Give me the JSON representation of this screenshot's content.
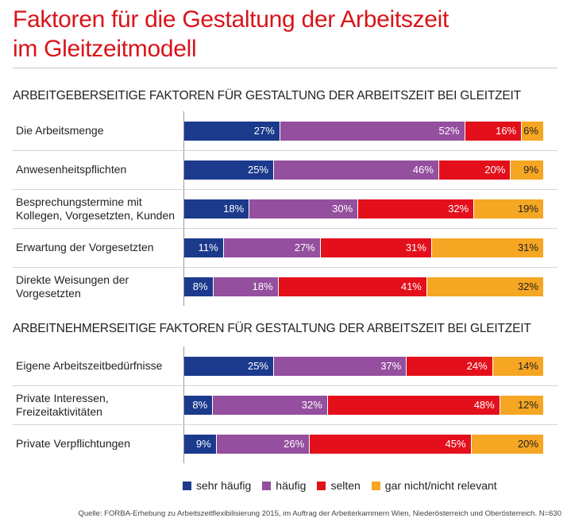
{
  "title_line1": "Faktoren für die Gestaltung der Arbeitszeit",
  "title_line2": "im Gleitzeitmodell",
  "colors": {
    "sehr_haeufig": "#1b3a8c",
    "haeufig": "#944f9e",
    "selten": "#e3101c",
    "gar_nicht": "#f5a623"
  },
  "legend": [
    {
      "label": "sehr häufig",
      "color": "#1b3a8c"
    },
    {
      "label": "häufig",
      "color": "#944f9e"
    },
    {
      "label": "selten",
      "color": "#e3101c"
    },
    {
      "label": "gar nicht/nicht relevant",
      "color": "#f5a623"
    }
  ],
  "source": "Quelle: FORBA-Erhebung zu Arbeitszeitflexibilisierung 2015, im Auftrag der Arbeiterkammern Wien, Niederösterreich und Oberösterreich. N=630",
  "chart_data": {
    "type": "bar",
    "orientation": "horizontal-stacked-100",
    "series_names": [
      "sehr häufig",
      "häufig",
      "selten",
      "gar nicht/nicht relevant"
    ],
    "groups": [
      {
        "title": "ARBEITGEBERSEITIGE FAKTOREN FÜR GESTALTUNG DER ARBEITSZEIT BEI GLEITZEIT",
        "rows": [
          {
            "label": "Die Arbeitsmenge",
            "values": [
              27,
              52,
              16,
              6
            ]
          },
          {
            "label": "Anwesenheitspflichten",
            "values": [
              25,
              46,
              20,
              9
            ]
          },
          {
            "label": "Besprechungstermine mit Kollegen, Vorgesetzten, Kunden",
            "values": [
              18,
              30,
              32,
              19
            ]
          },
          {
            "label": "Erwartung der Vorgesetzten",
            "values": [
              11,
              27,
              31,
              31
            ]
          },
          {
            "label": "Direkte Weisungen der Vorgesetzten",
            "values": [
              8,
              18,
              41,
              32
            ]
          }
        ]
      },
      {
        "title": "ARBEITNEHMERSEITIGE FAKTOREN FÜR GESTALTUNG DER ARBEITSZEIT BEI GLEITZEIT",
        "rows": [
          {
            "label": "Eigene Arbeitszeitbedürfnisse",
            "values": [
              25,
              37,
              24,
              14
            ]
          },
          {
            "label": "Private Interessen, Freizeitaktivitäten",
            "values": [
              8,
              32,
              48,
              12
            ]
          },
          {
            "label": "Private Verpflichtungen",
            "values": [
              9,
              26,
              45,
              20
            ]
          }
        ]
      }
    ]
  }
}
